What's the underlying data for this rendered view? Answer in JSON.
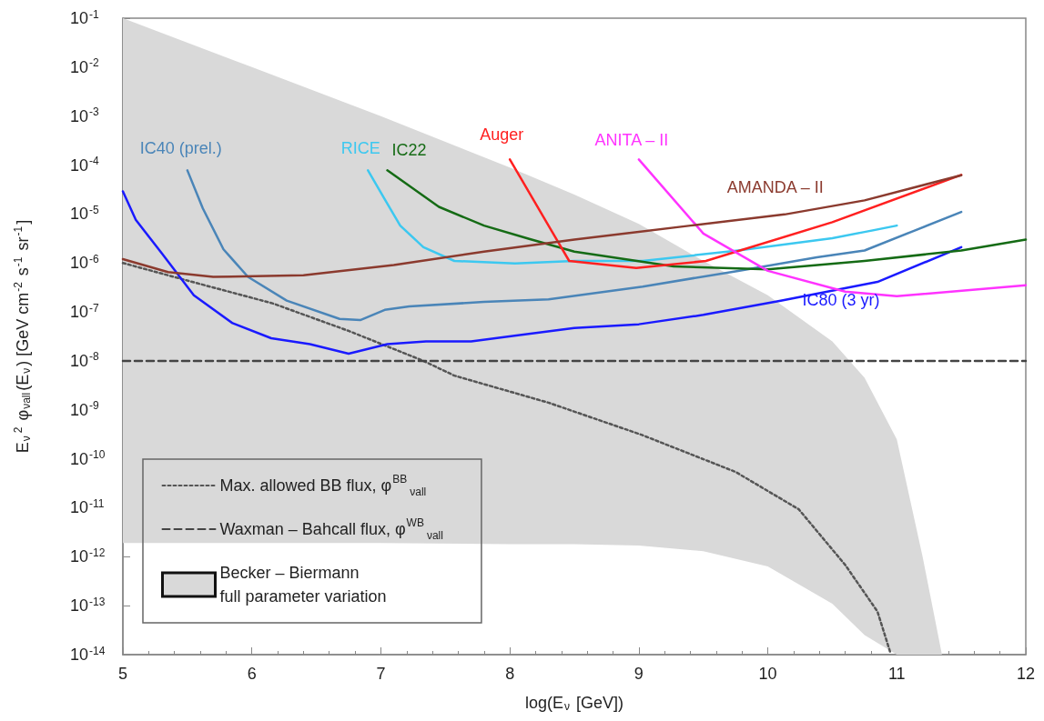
{
  "chart_data": {
    "type": "line",
    "xlabel": "log(E$_{ν}$ [GeV])",
    "ylabel": "E$_{ν}$$^{2}$ φ$_{νall}$(E$_{ν}$) [GeV cm$^{-2}$ s$^{-1}$ sr$^{-1}$]",
    "xlim": [
      5,
      12
    ],
    "xticks": [
      5,
      6,
      7,
      8,
      9,
      10,
      11,
      12
    ],
    "ylim": [
      1e-14,
      0.1
    ],
    "yticks": [
      {
        "value": 0.1,
        "label": "10$^{-1}$"
      },
      {
        "value": 0.01,
        "label": "10$^{-2}$"
      },
      {
        "value": 0.001,
        "label": "10$^{-3}$"
      },
      {
        "value": 0.0001,
        "label": "10$^{-4}$"
      },
      {
        "value": 1e-05,
        "label": "10$^{-5}$"
      },
      {
        "value": 1e-06,
        "label": "10$^{-6}$"
      },
      {
        "value": 1e-07,
        "label": "10$^{-7}$"
      },
      {
        "value": 1e-08,
        "label": "10$^{-8}$"
      },
      {
        "value": 1e-09,
        "label": "10$^{-9}$"
      },
      {
        "value": 1e-10,
        "label": "10$^{-10}$"
      },
      {
        "value": 1e-11,
        "label": "10$^{-11}$"
      },
      {
        "value": 1e-12,
        "label": "10$^{-12}$"
      },
      {
        "value": 1e-13,
        "label": "10$^{-13}$"
      },
      {
        "value": 1e-14,
        "label": "10$^{-14}$"
      }
    ],
    "log": "y",
    "legend": "bottom left",
    "marker": "none",
    "line_style": "solid",
    "series": [
      {
        "name": "Becker – Biermann\nfull parameter variation",
        "type": "area",
        "color": "#d9d9d9",
        "x": [
          5,
          6,
          7,
          8,
          8.5,
          9,
          9.5,
          10,
          10.5,
          10.75,
          11,
          11.2,
          11.35
        ],
        "values": [
          null,
          null,
          null,
          null,
          null,
          null,
          null,
          null,
          null,
          null,
          null,
          null,
          null
        ],
        "upper": [
          0.1,
          0.01,
          0.001,
          8.9e-05,
          2.5e-05,
          6.3e-06,
          1.1e-06,
          2.2e-07,
          2.5e-08,
          4.5e-09,
          2.5e-10,
          1e-12,
          1e-14
        ],
        "lower": [
          1.9e-12,
          1.9e-12,
          1.9e-12,
          1.8e-12,
          1.8e-12,
          1.7e-12,
          1.3e-12,
          6.3e-13,
          1.1e-13,
          2.5e-14,
          1e-14,
          1e-14,
          1e-14
        ]
      },
      {
        "name": "Max. allowed BB flux, φ$^{BB}$$_{νall}$",
        "color": "#555555",
        "line_style": "dotted",
        "x": [
          5,
          5.57,
          6.16,
          6.75,
          7.33,
          7.57,
          8.3,
          9.02,
          9.75,
          10.24,
          10.6,
          10.85,
          10.95
        ],
        "values": [
          1e-06,
          3.9e-07,
          1.5e-07,
          4.1e-08,
          1e-08,
          5e-09,
          1.4e-09,
          3.1e-10,
          5.4e-11,
          9.3e-12,
          6.8e-13,
          7.6e-14,
          1.1e-14
        ]
      },
      {
        "name": "Waxman – Bahcall flux, φ$^{WB}$$_{νall}$",
        "color": "#444444",
        "line_style": "dashed",
        "x": [
          5,
          12
        ],
        "values": [
          1e-08,
          1e-08
        ]
      },
      {
        "name": "IC80 (3 yr)",
        "color": "#1a1aff",
        "x": [
          5,
          5.1,
          5.3,
          5.55,
          5.85,
          6.15,
          6.45,
          6.75,
          7.05,
          7.35,
          7.7,
          8.05,
          8.5,
          9,
          9.5,
          10.1,
          10.85,
          11.5
        ],
        "values": [
          2.9e-05,
          7.6e-06,
          1.6e-06,
          2.2e-07,
          5.9e-08,
          2.9e-08,
          2.2e-08,
          1.4e-08,
          2.2e-08,
          2.5e-08,
          2.5e-08,
          3.3e-08,
          4.7e-08,
          5.6e-08,
          8.7e-08,
          1.7e-07,
          4.1e-07,
          2.1e-06
        ]
      },
      {
        "name": "IC40 (prel.)",
        "color": "#4a85b8",
        "x": [
          5.5,
          5.62,
          5.78,
          5.97,
          6.27,
          6.68,
          6.84,
          7.03,
          7.22,
          7.8,
          8.3,
          9.03,
          9.77,
          10.38,
          10.75,
          11.12,
          11.5
        ],
        "values": [
          7.8e-05,
          1.3e-05,
          1.9e-06,
          5.2e-07,
          1.7e-07,
          7.2e-08,
          6.8e-08,
          1.1e-07,
          1.3e-07,
          1.6e-07,
          1.8e-07,
          3.3e-07,
          6.9e-07,
          1.3e-06,
          1.8e-06,
          4.4e-06,
          1.1e-05
        ]
      },
      {
        "name": "RICE",
        "color": "#3cc8f0",
        "x": [
          6.9,
          7.03,
          7.15,
          7.33,
          7.57,
          8.04,
          8.5,
          9.03,
          9.77,
          10.5,
          10.75,
          11
        ],
        "values": [
          7.8e-05,
          2e-05,
          5.8e-06,
          2.1e-06,
          1.1e-06,
          9.8e-07,
          1.1e-06,
          1.1e-06,
          1.8e-06,
          3.2e-06,
          4.3e-06,
          5.8e-06
        ]
      },
      {
        "name": "IC22",
        "color": "#156b15",
        "x": [
          7.05,
          7.45,
          7.8,
          8.15,
          8.5,
          9.27,
          10,
          10.75,
          11.5,
          12
        ],
        "values": [
          7.8e-05,
          1.4e-05,
          5.8e-06,
          3.1e-06,
          1.7e-06,
          8.5e-07,
          7.4e-07,
          1.1e-06,
          1.8e-06,
          3e-06
        ]
      },
      {
        "name": "Auger",
        "color": "#ff2020",
        "x": [
          8,
          8.46,
          8.98,
          9.52,
          10.5,
          11.5
        ],
        "values": [
          0.00013,
          1.1e-06,
          7.9e-07,
          1.1e-06,
          6.8e-06,
          6.3e-05
        ]
      },
      {
        "name": "ANITA – II",
        "color": "#ff33ff",
        "x": [
          9,
          9.5,
          10,
          10.6,
          11,
          12
        ],
        "values": [
          0.00013,
          4e-06,
          6.9e-07,
          2.6e-07,
          2.1e-07,
          3.5e-07
        ]
      },
      {
        "name": "AMANDA – II",
        "color": "#8b3a2e",
        "x": [
          5,
          5.35,
          5.7,
          6.4,
          7.1,
          7.8,
          8.5,
          9.4,
          10.13,
          10.75,
          11.5
        ],
        "values": [
          1.2e-06,
          6.5e-07,
          5.2e-07,
          5.6e-07,
          9.1e-07,
          1.7e-06,
          3e-06,
          5.8e-06,
          9.8e-06,
          1.9e-05,
          6.2e-05
        ]
      }
    ]
  }
}
